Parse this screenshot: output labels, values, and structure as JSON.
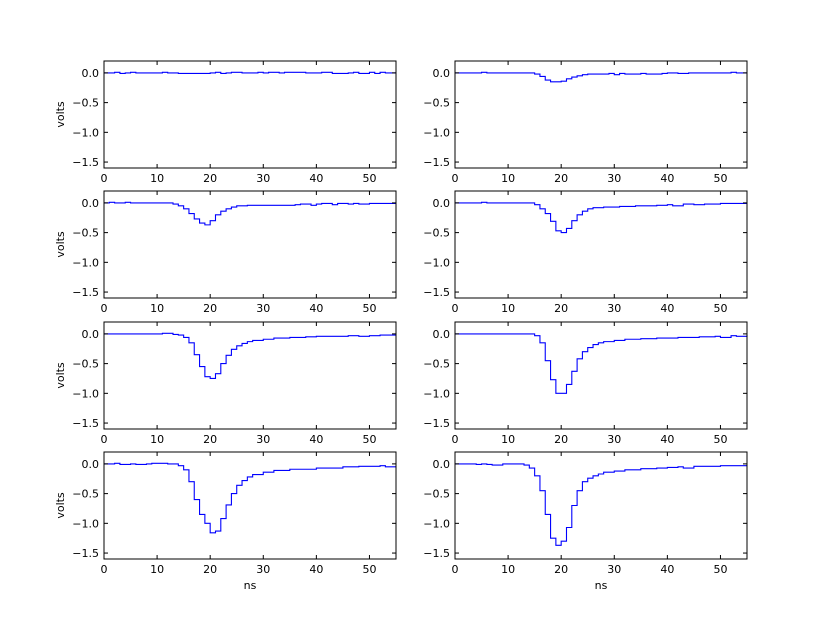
{
  "chart_data": [
    {
      "type": "line",
      "step": true,
      "xlabel": "",
      "ylabel": "volts",
      "xlim": [
        0,
        55
      ],
      "ylim": [
        -1.6,
        0.2
      ],
      "xticks": [
        0,
        10,
        20,
        30,
        40,
        50
      ],
      "yticks": [
        0.0,
        -0.5,
        -1.0,
        -1.5
      ],
      "line_color": "#0000ff",
      "x": [
        0,
        2,
        3,
        4,
        5,
        6,
        11,
        12,
        13,
        14,
        20,
        21,
        22,
        23,
        24,
        26,
        29,
        30,
        31,
        33,
        34,
        38,
        41,
        43,
        46,
        47,
        48,
        50,
        51,
        52,
        53,
        55
      ],
      "y": [
        0.0,
        0.01,
        -0.01,
        0.0,
        0.01,
        0.0,
        0.01,
        0.0,
        0.0,
        -0.01,
        0.0,
        0.01,
        -0.01,
        0.0,
        0.01,
        0.0,
        0.01,
        0.0,
        0.01,
        0.0,
        0.01,
        0.0,
        0.01,
        -0.01,
        0.0,
        0.01,
        -0.01,
        0.01,
        -0.01,
        0.01,
        0.0,
        0.0
      ]
    },
    {
      "type": "line",
      "step": true,
      "xlabel": "",
      "ylabel": "",
      "xlim": [
        0,
        55
      ],
      "ylim": [
        -1.6,
        0.2
      ],
      "xticks": [
        0,
        10,
        20,
        30,
        40,
        50
      ],
      "yticks": [
        0.0,
        -0.5,
        -1.0,
        -1.5
      ],
      "line_color": "#0000ff",
      "x": [
        0,
        5,
        6,
        15,
        16,
        17,
        18,
        19,
        20,
        21,
        22,
        23,
        24,
        25,
        29,
        30,
        31,
        32,
        35,
        36,
        39,
        40,
        42,
        44,
        47,
        52,
        53,
        55
      ],
      "y": [
        0.0,
        0.01,
        0.0,
        -0.02,
        -0.06,
        -0.12,
        -0.15,
        -0.15,
        -0.14,
        -0.1,
        -0.07,
        -0.05,
        -0.03,
        -0.02,
        -0.01,
        -0.03,
        -0.01,
        -0.02,
        -0.01,
        -0.02,
        -0.01,
        0.0,
        -0.01,
        0.0,
        0.0,
        0.01,
        0.0,
        0.0
      ]
    },
    {
      "type": "line",
      "step": true,
      "xlabel": "",
      "ylabel": "volts",
      "xlim": [
        0,
        55
      ],
      "ylim": [
        -1.6,
        0.2
      ],
      "xticks": [
        0,
        10,
        20,
        30,
        40,
        50
      ],
      "yticks": [
        0.0,
        -0.5,
        -1.0,
        -1.5
      ],
      "line_color": "#0000ff",
      "x": [
        0,
        1,
        2,
        4,
        5,
        6,
        13,
        14,
        15,
        16,
        17,
        18,
        19,
        20,
        21,
        22,
        23,
        24,
        25,
        27,
        33,
        36,
        37,
        39,
        40,
        41,
        43,
        44,
        46,
        47,
        48,
        50,
        55
      ],
      "y": [
        0.0,
        0.01,
        0.0,
        0.01,
        0.0,
        0.0,
        -0.02,
        -0.05,
        -0.1,
        -0.18,
        -0.27,
        -0.34,
        -0.37,
        -0.3,
        -0.2,
        -0.14,
        -0.1,
        -0.07,
        -0.05,
        -0.04,
        -0.04,
        -0.03,
        -0.02,
        -0.04,
        -0.02,
        -0.01,
        -0.03,
        -0.01,
        -0.02,
        -0.01,
        -0.02,
        -0.01,
        -0.01
      ]
    },
    {
      "type": "line",
      "step": true,
      "xlabel": "",
      "ylabel": "",
      "xlim": [
        0,
        55
      ],
      "ylim": [
        -1.6,
        0.2
      ],
      "xticks": [
        0,
        10,
        20,
        30,
        40,
        50
      ],
      "yticks": [
        0.0,
        -0.5,
        -1.0,
        -1.5
      ],
      "line_color": "#0000ff",
      "x": [
        0,
        5,
        6,
        15,
        16,
        17,
        18,
        19,
        20,
        21,
        22,
        23,
        24,
        25,
        26,
        28,
        31,
        34,
        38,
        40,
        41,
        43,
        45,
        47,
        50,
        55
      ],
      "y": [
        0.0,
        0.01,
        0.0,
        -0.03,
        -0.1,
        -0.18,
        -0.31,
        -0.47,
        -0.5,
        -0.43,
        -0.3,
        -0.2,
        -0.14,
        -0.1,
        -0.08,
        -0.07,
        -0.06,
        -0.05,
        -0.04,
        -0.03,
        -0.05,
        -0.02,
        -0.03,
        -0.02,
        -0.01,
        -0.01
      ]
    },
    {
      "type": "line",
      "step": true,
      "xlabel": "",
      "ylabel": "volts",
      "xlim": [
        0,
        55
      ],
      "ylim": [
        -1.6,
        0.2
      ],
      "xticks": [
        0,
        10,
        20,
        30,
        40,
        50
      ],
      "yticks": [
        0.0,
        -0.5,
        -1.0,
        -1.5
      ],
      "line_color": "#0000ff",
      "x": [
        0,
        10,
        11,
        13,
        14,
        15,
        16,
        17,
        18,
        19,
        20,
        21,
        22,
        23,
        24,
        25,
        26,
        27,
        28,
        30,
        32,
        35,
        38,
        40,
        43,
        46,
        48,
        50,
        52,
        55
      ],
      "y": [
        0.0,
        0.0,
        0.01,
        -0.01,
        -0.02,
        -0.06,
        -0.15,
        -0.35,
        -0.55,
        -0.72,
        -0.75,
        -0.67,
        -0.5,
        -0.36,
        -0.26,
        -0.2,
        -0.16,
        -0.13,
        -0.11,
        -0.09,
        -0.07,
        -0.06,
        -0.05,
        -0.04,
        -0.04,
        -0.03,
        -0.04,
        -0.03,
        -0.02,
        -0.02
      ]
    },
    {
      "type": "line",
      "step": true,
      "xlabel": "",
      "ylabel": "",
      "xlim": [
        0,
        55
      ],
      "ylim": [
        -1.6,
        0.2
      ],
      "xticks": [
        0,
        10,
        20,
        30,
        40,
        50
      ],
      "yticks": [
        0.0,
        -0.5,
        -1.0,
        -1.5
      ],
      "line_color": "#0000ff",
      "x": [
        0,
        10,
        15,
        16,
        17,
        18,
        19,
        21,
        22,
        23,
        24,
        25,
        26,
        27,
        28,
        30,
        32,
        35,
        38,
        42,
        46,
        49,
        50,
        52,
        53,
        55
      ],
      "y": [
        0.0,
        0.0,
        -0.03,
        -0.15,
        -0.45,
        -0.77,
        -1.0,
        -0.85,
        -0.63,
        -0.42,
        -0.3,
        -0.23,
        -0.18,
        -0.15,
        -0.13,
        -0.11,
        -0.09,
        -0.08,
        -0.07,
        -0.06,
        -0.05,
        -0.04,
        -0.06,
        -0.03,
        -0.04,
        -0.02
      ]
    },
    {
      "type": "line",
      "step": true,
      "xlabel": "ns",
      "ylabel": "volts",
      "xlim": [
        0,
        55
      ],
      "ylim": [
        -1.6,
        0.2
      ],
      "xticks": [
        0,
        10,
        20,
        30,
        40,
        50
      ],
      "yticks": [
        0.0,
        -0.5,
        -1.0,
        -1.5
      ],
      "line_color": "#0000ff",
      "x": [
        0,
        2,
        3,
        5,
        6,
        8,
        9,
        12,
        13,
        14,
        15,
        16,
        17,
        18,
        19,
        20,
        21,
        22,
        23,
        24,
        25,
        26,
        27,
        28,
        30,
        32,
        35,
        40,
        45,
        48,
        52,
        53,
        55
      ],
      "y": [
        0.0,
        0.01,
        -0.01,
        0.0,
        -0.01,
        0.0,
        0.01,
        0.0,
        0.0,
        -0.03,
        -0.1,
        -0.3,
        -0.6,
        -0.85,
        -1.0,
        -1.16,
        -1.13,
        -0.92,
        -0.69,
        -0.5,
        -0.36,
        -0.28,
        -0.22,
        -0.18,
        -0.14,
        -0.11,
        -0.09,
        -0.07,
        -0.05,
        -0.04,
        -0.03,
        -0.05,
        -0.05
      ]
    },
    {
      "type": "line",
      "step": true,
      "xlabel": "ns",
      "ylabel": "",
      "xlim": [
        0,
        55
      ],
      "ylim": [
        -1.6,
        0.2
      ],
      "xticks": [
        0,
        10,
        20,
        30,
        40,
        50
      ],
      "yticks": [
        0.0,
        -0.5,
        -1.0,
        -1.5
      ],
      "line_color": "#0000ff",
      "x": [
        0,
        3,
        4,
        5,
        6,
        7,
        9,
        12,
        13,
        14,
        15,
        16,
        17,
        18,
        19,
        20,
        21,
        22,
        23,
        24,
        25,
        26,
        27,
        28,
        30,
        32,
        35,
        38,
        40,
        42,
        43,
        45,
        50,
        55
      ],
      "y": [
        0.0,
        0.0,
        -0.01,
        0.0,
        -0.01,
        -0.02,
        0.0,
        0.0,
        -0.02,
        -0.07,
        -0.2,
        -0.45,
        -0.85,
        -1.25,
        -1.37,
        -1.3,
        -1.07,
        -0.7,
        -0.45,
        -0.3,
        -0.24,
        -0.2,
        -0.17,
        -0.14,
        -0.12,
        -0.1,
        -0.08,
        -0.07,
        -0.06,
        -0.05,
        -0.07,
        -0.04,
        -0.03,
        -0.03
      ]
    }
  ]
}
